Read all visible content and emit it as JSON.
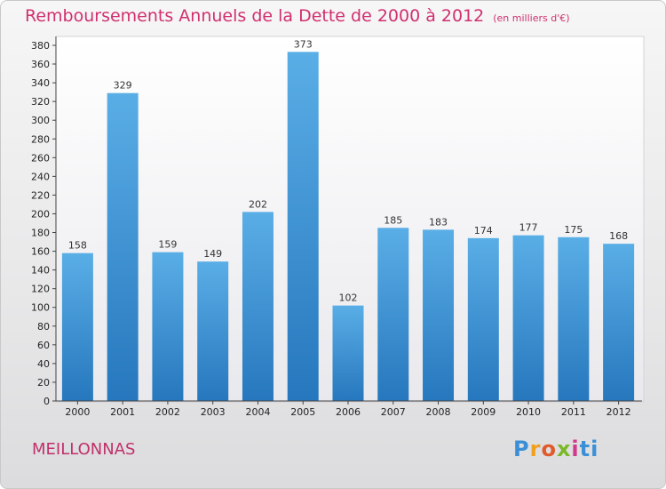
{
  "title": "Remboursements Annuels de la Dette de 2000 à 2012",
  "subtitle": "(en milliers d'€)",
  "commune": "MEILLONNAS",
  "logo_text": "Proxiti",
  "colors": {
    "bar": "#2f86cc",
    "bar_light": "#5aaee6",
    "title": "#d0306f"
  },
  "chart_data": {
    "type": "bar",
    "categories": [
      "2000",
      "2001",
      "2002",
      "2003",
      "2004",
      "2005",
      "2006",
      "2007",
      "2008",
      "2009",
      "2010",
      "2011",
      "2012"
    ],
    "values": [
      158,
      329,
      159,
      149,
      202,
      373,
      102,
      185,
      183,
      174,
      177,
      175,
      168
    ],
    "ylim": [
      0,
      380
    ],
    "yticks": [
      0,
      20,
      40,
      60,
      80,
      100,
      120,
      140,
      160,
      180,
      200,
      220,
      240,
      260,
      280,
      300,
      320,
      340,
      360,
      380
    ],
    "grid": false,
    "legend": "none"
  }
}
